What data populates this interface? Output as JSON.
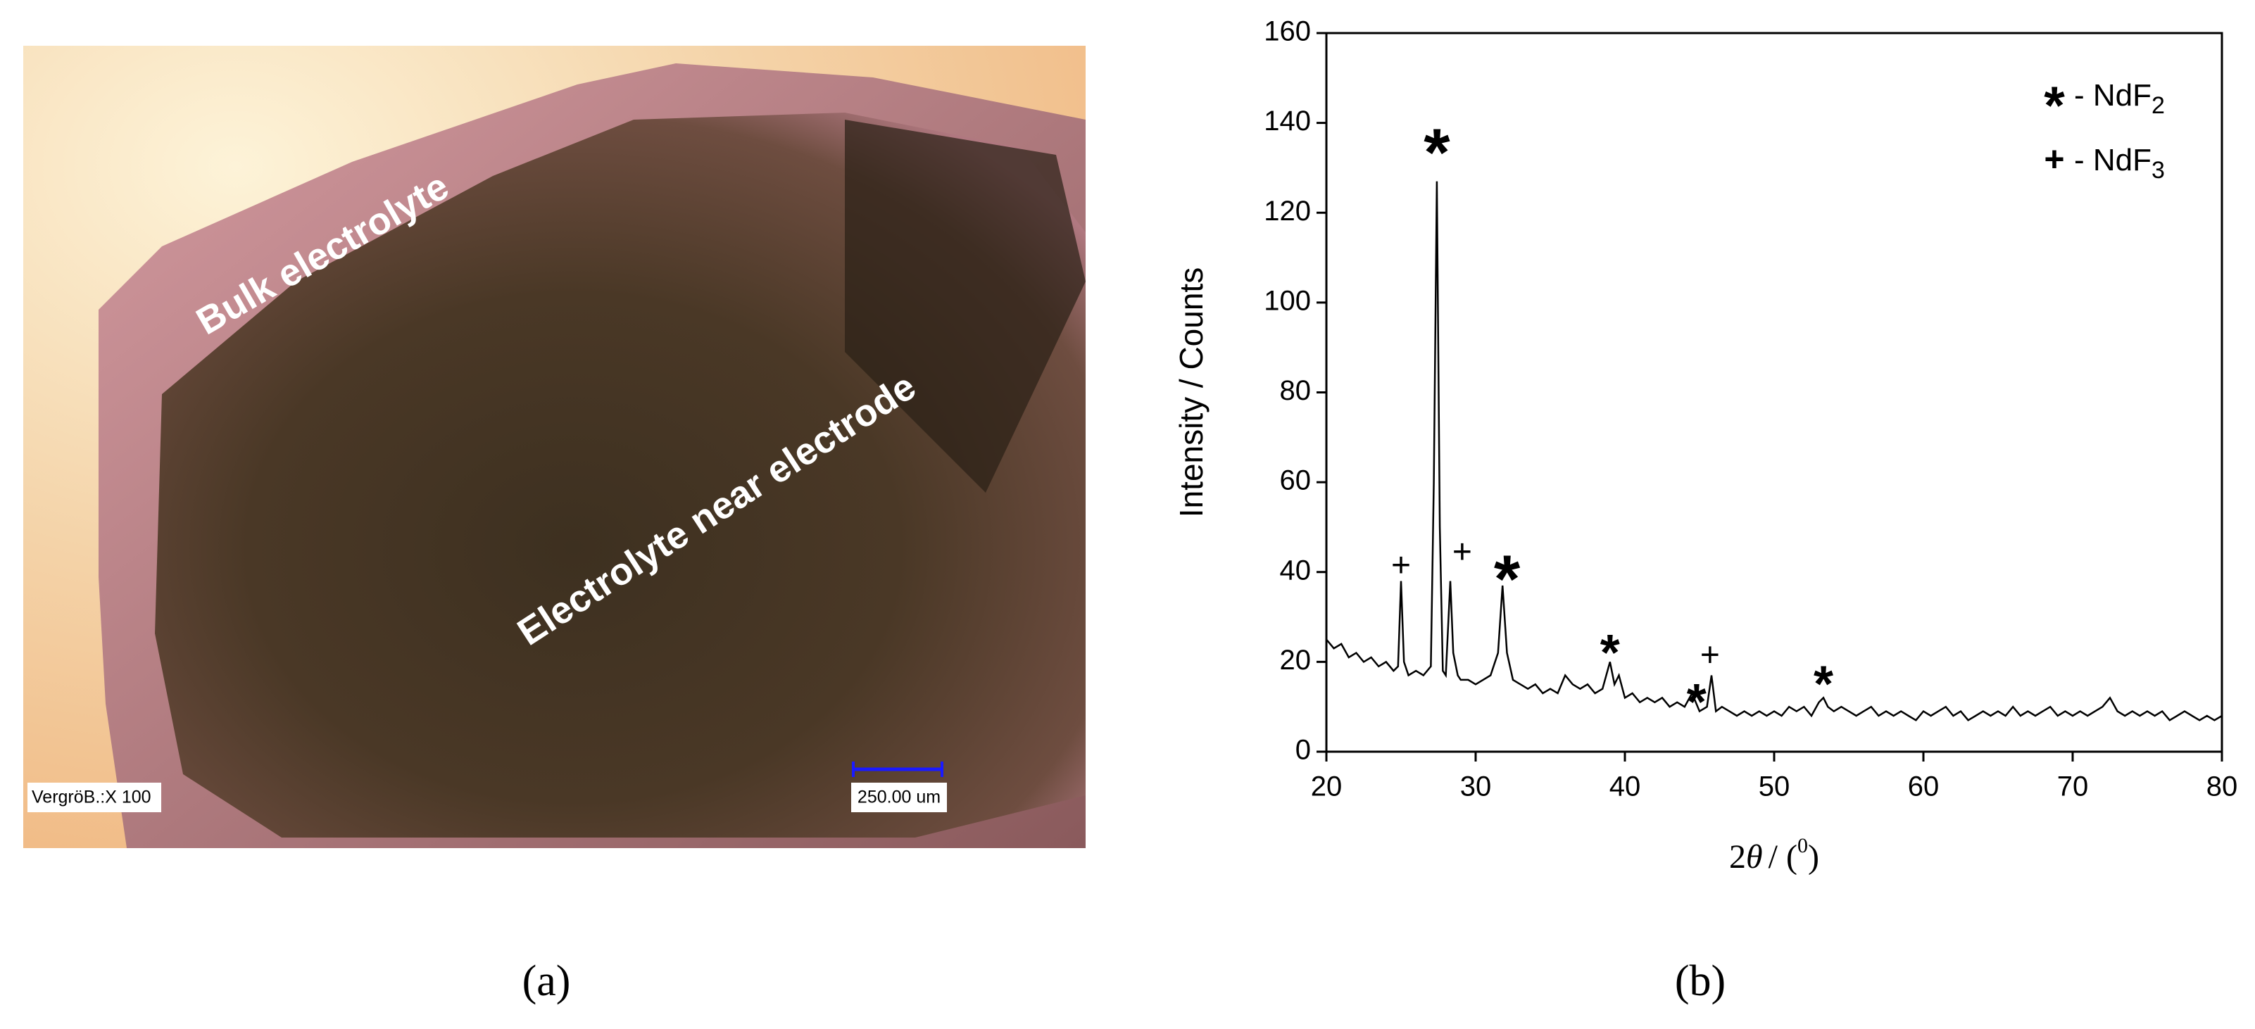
{
  "photo": {
    "labels": [
      "Bulk electrolyte",
      "Electrolyte near electrode"
    ],
    "magnification": "VergröB.:X 100",
    "scale_bar": "250.00 um"
  },
  "captions": [
    "(a)",
    "(b)"
  ],
  "chart_data": {
    "type": "line",
    "color": "#000000",
    "xlabel": {
      "lead": "2",
      "symbol": "θ",
      "mid": "/ (",
      "sup": "0",
      "tail": ")"
    },
    "ylabel": "Intensity / Counts",
    "x": [
      20,
      20.5,
      21,
      21.5,
      22,
      22.5,
      23,
      23.5,
      24,
      24.5,
      24.8,
      25,
      25.2,
      25.5,
      26,
      26.5,
      27,
      27.2,
      27.4,
      27.6,
      27.8,
      28,
      28.3,
      28.5,
      28.8,
      29,
      29.5,
      30,
      30.5,
      31,
      31.5,
      31.8,
      32.1,
      32.5,
      33,
      33.5,
      34,
      34.5,
      35,
      35.5,
      36,
      36.5,
      37,
      37.5,
      38,
      38.5,
      39,
      39.3,
      39.6,
      40,
      40.5,
      41,
      41.5,
      42,
      42.5,
      43,
      43.5,
      44,
      44.5,
      45,
      45.5,
      45.8,
      46.1,
      46.5,
      47,
      47.5,
      48,
      48.5,
      49,
      49.5,
      50,
      50.5,
      51,
      51.5,
      52,
      52.5,
      53,
      53.3,
      53.6,
      54,
      54.5,
      55,
      55.5,
      56,
      56.5,
      57,
      57.5,
      58,
      58.5,
      59,
      59.5,
      60,
      60.5,
      61,
      61.5,
      62,
      62.5,
      63,
      63.5,
      64,
      64.5,
      65,
      65.5,
      66,
      66.5,
      67,
      67.5,
      68,
      68.5,
      69,
      69.5,
      70,
      70.5,
      71,
      71.5,
      72,
      72.5,
      73,
      73.5,
      74,
      74.5,
      75,
      75.5,
      76,
      76.5,
      77,
      77.5,
      78,
      78.5,
      79,
      79.5,
      80
    ],
    "values": [
      25,
      23,
      24,
      21,
      22,
      20,
      21,
      19,
      20,
      18,
      19,
      38,
      20,
      17,
      18,
      17,
      19,
      60,
      127,
      50,
      18,
      17,
      38,
      22,
      17,
      16,
      16,
      15,
      16,
      17,
      22,
      37,
      22,
      16,
      15,
      14,
      15,
      13,
      14,
      13,
      17,
      15,
      14,
      15,
      13,
      14,
      20,
      15,
      17,
      12,
      13,
      11,
      12,
      11,
      12,
      10,
      11,
      10,
      13,
      9,
      10,
      17,
      9,
      10,
      9,
      8,
      9,
      8,
      9,
      8,
      9,
      8,
      10,
      9,
      10,
      8,
      11,
      12,
      10,
      9,
      10,
      9,
      8,
      9,
      10,
      8,
      9,
      8,
      9,
      8,
      7,
      9,
      8,
      9,
      10,
      8,
      9,
      7,
      8,
      9,
      8,
      9,
      8,
      10,
      8,
      9,
      8,
      9,
      10,
      8,
      9,
      8,
      9,
      8,
      9,
      10,
      12,
      9,
      8,
      9,
      8,
      9,
      8,
      9,
      7,
      8,
      9,
      8,
      7,
      8,
      7,
      8
    ],
    "xlim": [
      20,
      80
    ],
    "xticks": [
      20,
      30,
      40,
      50,
      60,
      70,
      80
    ],
    "ylim": [
      0,
      160
    ],
    "yticks": [
      0,
      20,
      40,
      60,
      80,
      100,
      120,
      140,
      160
    ],
    "annotations": [
      {
        "text": "*",
        "x": 27.4,
        "y": 136,
        "size": "large"
      },
      {
        "text": "+",
        "x": 25,
        "y": 41,
        "size": "small"
      },
      {
        "text": "+",
        "x": 29.1,
        "y": 44,
        "size": "small"
      },
      {
        "text": "*",
        "x": 32.1,
        "y": 41,
        "size": "large"
      },
      {
        "text": "*",
        "x": 39,
        "y": 24,
        "size": "medium"
      },
      {
        "text": "*",
        "x": 44.8,
        "y": 13,
        "size": "medium"
      },
      {
        "text": "+",
        "x": 45.7,
        "y": 21,
        "size": "small"
      },
      {
        "text": "*",
        "x": 53.3,
        "y": 17,
        "size": "medium"
      }
    ],
    "legend": [
      {
        "symbol": "*",
        "text": "- NdF",
        "sub": "2"
      },
      {
        "symbol": "+",
        "text": "- NdF",
        "sub": "3"
      }
    ]
  }
}
